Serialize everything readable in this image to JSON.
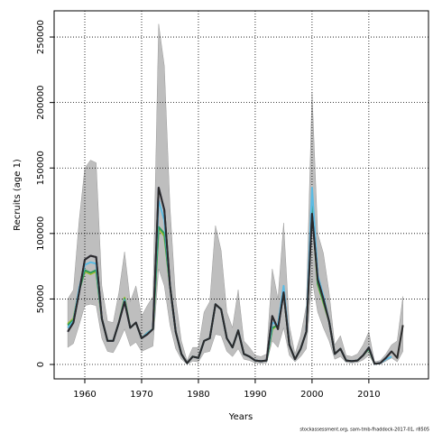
{
  "chart_data": {
    "type": "line",
    "xlabel": "Years",
    "ylabel": "Recruits (age 1)",
    "footer": "stockassessment.org, sam-tmb-fhaddock-2017-01, r8505",
    "x": [
      1957,
      1958,
      1959,
      1960,
      1961,
      1962,
      1963,
      1964,
      1965,
      1966,
      1967,
      1968,
      1969,
      1970,
      1971,
      1972,
      1973,
      1974,
      1975,
      1976,
      1977,
      1978,
      1979,
      1980,
      1981,
      1982,
      1983,
      1984,
      1985,
      1986,
      1987,
      1988,
      1989,
      1990,
      1991,
      1992,
      1993,
      1994,
      1995,
      1996,
      1997,
      1998,
      1999,
      2000,
      2001,
      2002,
      2003,
      2004,
      2005,
      2006,
      2007,
      2008,
      2009,
      2010,
      2011,
      2012,
      2013,
      2014,
      2015,
      2016
    ],
    "band": {
      "color": "#bebebe",
      "upper": [
        50000,
        57000,
        110000,
        150000,
        156000,
        154000,
        60000,
        33000,
        32000,
        55000,
        86000,
        48000,
        60000,
        37000,
        45000,
        52000,
        260000,
        228000,
        120000,
        50000,
        18000,
        3000,
        13000,
        13000,
        40000,
        48000,
        106000,
        87000,
        40000,
        28000,
        57000,
        18000,
        13000,
        7000,
        6000,
        8000,
        73000,
        50000,
        108000,
        30000,
        8000,
        22000,
        45000,
        208000,
        100000,
        85000,
        55000,
        15000,
        22000,
        7000,
        6000,
        8000,
        15000,
        25000,
        2000,
        3000,
        8000,
        15000,
        18000,
        52000
      ],
      "lower": [
        13000,
        16000,
        30000,
        45000,
        46000,
        45000,
        20000,
        10000,
        9000,
        17000,
        27000,
        14000,
        17000,
        10000,
        12000,
        14000,
        73000,
        60000,
        30000,
        12000,
        4000,
        300,
        2500,
        2000,
        9000,
        10000,
        23000,
        22000,
        10000,
        6000,
        12000,
        4000,
        3000,
        1200,
        1000,
        1200,
        18000,
        13000,
        28000,
        7000,
        2000,
        6000,
        12000,
        65000,
        40000,
        28000,
        18000,
        4000,
        6000,
        1500,
        1200,
        1500,
        3500,
        7000,
        200,
        400,
        2500,
        5000,
        2000,
        10000
      ]
    },
    "series": [
      {
        "color": "#2b2b2b",
        "values": [
          25000,
          32000,
          55000,
          80000,
          83000,
          82000,
          35000,
          18000,
          18000,
          32000,
          48000,
          28000,
          32000,
          20000,
          23000,
          27000,
          135000,
          118000,
          60000,
          25000,
          8000,
          1000,
          6000,
          5000,
          18000,
          20000,
          46000,
          42000,
          20000,
          13000,
          26000,
          8000,
          6000,
          3000,
          2500,
          3000,
          37000,
          27000,
          55000,
          15000,
          4000,
          12000,
          25000,
          115000,
          65000,
          50000,
          33000,
          8000,
          12000,
          3000,
          2500,
          3000,
          7000,
          13000,
          500,
          1000,
          5000,
          10000,
          5000,
          30000
        ]
      },
      {
        "color": "#2d2a7a",
        "values": [
          25000,
          32000,
          55000,
          80000,
          83000,
          82000,
          35000,
          18000,
          18000,
          32000,
          48000,
          28000,
          32000,
          20000,
          23000,
          27000,
          135000,
          118000,
          60000,
          25000,
          8000,
          1000,
          6000,
          5000,
          18000,
          20000,
          46000,
          42000,
          20000,
          13000,
          26000,
          8000,
          6000,
          3000,
          2500,
          3000,
          37000,
          27000,
          55000,
          15000,
          4000,
          12000,
          25000,
          115000,
          65000,
          50000,
          33000,
          8000,
          12000,
          3000,
          2500,
          3000,
          7000,
          13000,
          500,
          1000,
          5000,
          10000,
          null,
          null
        ]
      },
      {
        "color": "#5bbce4",
        "values": [
          28000,
          33000,
          58000,
          76000,
          78000,
          77000,
          35000,
          18000,
          18000,
          32000,
          49000,
          28000,
          32000,
          20000,
          24000,
          27000,
          125000,
          110000,
          60000,
          25000,
          8000,
          1000,
          6000,
          5000,
          18000,
          20000,
          46000,
          42000,
          20000,
          13000,
          26000,
          8000,
          6000,
          3000,
          2500,
          3000,
          32000,
          30000,
          60000,
          15000,
          4000,
          12000,
          25000,
          135000,
          68000,
          52000,
          33000,
          8000,
          12000,
          3000,
          2500,
          3000,
          7000,
          13000,
          500,
          1000,
          4000,
          6000,
          null,
          null
        ]
      },
      {
        "color": "#2e9a5a",
        "values": [
          30000,
          34000,
          56000,
          72000,
          70000,
          72000,
          35000,
          18000,
          18000,
          32000,
          50000,
          28000,
          32000,
          20000,
          24000,
          27000,
          105000,
          100000,
          60000,
          25000,
          8000,
          1000,
          6000,
          5000,
          18000,
          20000,
          46000,
          42000,
          20000,
          13000,
          26000,
          8000,
          6000,
          3000,
          2500,
          3000,
          28000,
          30000,
          55000,
          15000,
          4000,
          12000,
          25000,
          120000,
          62000,
          48000,
          33000,
          8000,
          12000,
          3000,
          2500,
          3000,
          7000,
          12000,
          500,
          800,
          null,
          null,
          null,
          null
        ]
      },
      {
        "color": "#9fbd2c",
        "values": [
          31000,
          35000,
          57000,
          71000,
          69000,
          71000,
          35000,
          18000,
          18000,
          32000,
          51000,
          28000,
          32000,
          20000,
          24000,
          27000,
          104000,
          98000,
          60000,
          25000,
          8000,
          1000,
          6000,
          5000,
          18000,
          20000,
          46000,
          42000,
          20000,
          13000,
          26000,
          8000,
          6000,
          3000,
          2500,
          3000,
          27000,
          30000,
          55000,
          15000,
          4000,
          12000,
          25000,
          118000,
          61000,
          47000,
          33000,
          8000,
          12000,
          3000,
          2500,
          3000,
          7000,
          12000,
          500,
          null,
          null,
          null,
          null,
          null
        ]
      }
    ],
    "xlim": [
      1954.6,
      2020.5
    ],
    "ylim": [
      -11000,
      270000
    ],
    "xticks": [
      1960,
      1970,
      1980,
      1990,
      2000,
      2010
    ],
    "yticks": [
      0,
      50000,
      100000,
      150000,
      200000,
      250000
    ],
    "grid": true
  }
}
